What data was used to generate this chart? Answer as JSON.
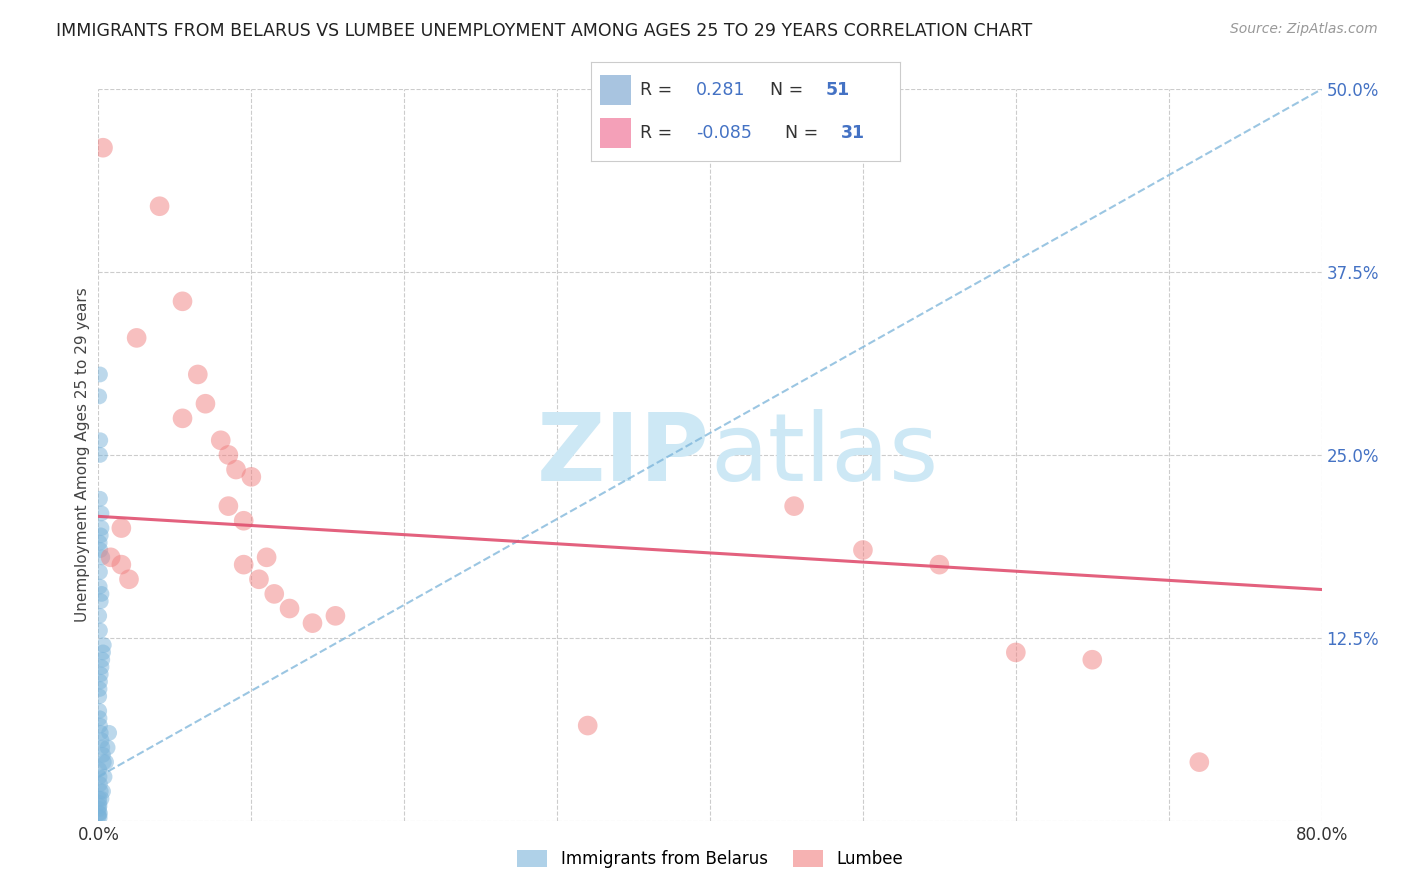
{
  "title": "IMMIGRANTS FROM BELARUS VS LUMBEE UNEMPLOYMENT AMONG AGES 25 TO 29 YEARS CORRELATION CHART",
  "source": "Source: ZipAtlas.com",
  "ylabel": "Unemployment Among Ages 25 to 29 years",
  "xlim": [
    0.0,
    0.8
  ],
  "ylim": [
    0.0,
    0.5
  ],
  "xticks": [
    0.0,
    0.1,
    0.2,
    0.3,
    0.4,
    0.5,
    0.6,
    0.7,
    0.8
  ],
  "ytick_right_labels": [
    "50.0%",
    "37.5%",
    "25.0%",
    "12.5%",
    ""
  ],
  "ytick_right_vals": [
    0.5,
    0.375,
    0.25,
    0.125,
    0.0
  ],
  "legend_color1": "#a8c4e0",
  "legend_color2": "#f4a0b8",
  "blue_color": "#7ab3d9",
  "pink_color": "#f08080",
  "trendline_blue_color": "#7ab3d9",
  "trendline_pink_color": "#e05070",
  "watermark_zip": "ZIP",
  "watermark_atlas": "atlas",
  "watermark_color": "#cde8f5",
  "blue_r": "0.281",
  "blue_n": "51",
  "pink_r": "-0.085",
  "pink_n": "31",
  "blue_scatter": [
    [
      0.0005,
      0.29
    ],
    [
      0.001,
      0.305
    ],
    [
      0.001,
      0.22
    ],
    [
      0.0015,
      0.195
    ],
    [
      0.001,
      0.25
    ],
    [
      0.0012,
      0.26
    ],
    [
      0.002,
      0.2
    ],
    [
      0.0025,
      0.18
    ],
    [
      0.002,
      0.21
    ],
    [
      0.0008,
      0.16
    ],
    [
      0.001,
      0.17
    ],
    [
      0.0015,
      0.15
    ],
    [
      0.002,
      0.155
    ],
    [
      0.0005,
      0.14
    ],
    [
      0.001,
      0.13
    ],
    [
      0.0008,
      0.19
    ],
    [
      0.0012,
      0.185
    ],
    [
      0.0005,
      0.085
    ],
    [
      0.0007,
      0.09
    ],
    [
      0.001,
      0.095
    ],
    [
      0.0015,
      0.1
    ],
    [
      0.002,
      0.105
    ],
    [
      0.0025,
      0.11
    ],
    [
      0.003,
      0.115
    ],
    [
      0.0035,
      0.12
    ],
    [
      0.0005,
      0.075
    ],
    [
      0.0007,
      0.07
    ],
    [
      0.001,
      0.065
    ],
    [
      0.0015,
      0.06
    ],
    [
      0.002,
      0.055
    ],
    [
      0.0025,
      0.05
    ],
    [
      0.003,
      0.045
    ],
    [
      0.0035,
      0.04
    ],
    [
      0.0005,
      0.035
    ],
    [
      0.0007,
      0.03
    ],
    [
      0.001,
      0.025
    ],
    [
      0.0015,
      0.02
    ],
    [
      0.002,
      0.015
    ],
    [
      0.0005,
      0.015
    ],
    [
      0.0007,
      0.01
    ],
    [
      0.001,
      0.005
    ],
    [
      0.0003,
      0.005
    ],
    [
      0.0002,
      0.003
    ],
    [
      0.0008,
      0.002
    ],
    [
      0.0004,
      0.008
    ],
    [
      0.0006,
      0.012
    ],
    [
      0.003,
      0.02
    ],
    [
      0.004,
      0.03
    ],
    [
      0.005,
      0.04
    ],
    [
      0.006,
      0.05
    ],
    [
      0.007,
      0.06
    ]
  ],
  "pink_scatter": [
    [
      0.003,
      0.46
    ],
    [
      0.04,
      0.42
    ],
    [
      0.055,
      0.355
    ],
    [
      0.025,
      0.33
    ],
    [
      0.065,
      0.305
    ],
    [
      0.07,
      0.285
    ],
    [
      0.055,
      0.275
    ],
    [
      0.08,
      0.26
    ],
    [
      0.085,
      0.25
    ],
    [
      0.09,
      0.24
    ],
    [
      0.1,
      0.235
    ],
    [
      0.085,
      0.215
    ],
    [
      0.095,
      0.205
    ],
    [
      0.015,
      0.2
    ],
    [
      0.455,
      0.215
    ],
    [
      0.5,
      0.185
    ],
    [
      0.55,
      0.175
    ],
    [
      0.6,
      0.115
    ],
    [
      0.65,
      0.11
    ],
    [
      0.115,
      0.155
    ],
    [
      0.125,
      0.145
    ],
    [
      0.14,
      0.135
    ],
    [
      0.155,
      0.14
    ],
    [
      0.105,
      0.165
    ],
    [
      0.11,
      0.18
    ],
    [
      0.095,
      0.175
    ],
    [
      0.32,
      0.065
    ],
    [
      0.72,
      0.04
    ],
    [
      0.008,
      0.18
    ],
    [
      0.015,
      0.175
    ],
    [
      0.02,
      0.165
    ]
  ],
  "blue_trend_x": [
    0.0,
    0.8
  ],
  "blue_trend_y": [
    0.03,
    0.5
  ],
  "pink_trend_x": [
    0.0,
    0.8
  ],
  "pink_trend_y": [
    0.208,
    0.158
  ]
}
